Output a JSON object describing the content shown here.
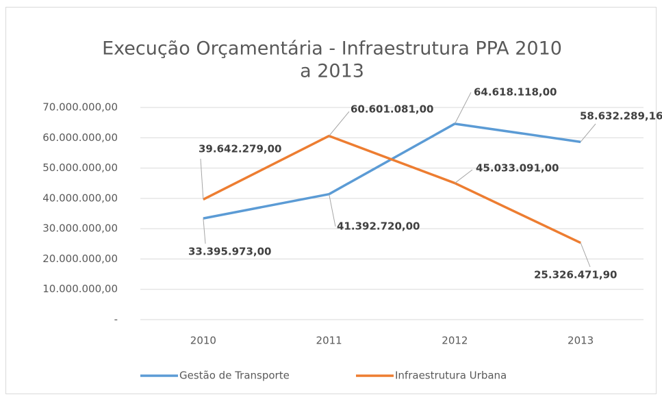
{
  "chart_data": {
    "type": "line",
    "title": [
      "Execução Orçamentária - Infraestrutura PPA 2010",
      "a 2013"
    ],
    "categories": [
      "2010",
      "2011",
      "2012",
      "2013"
    ],
    "series": [
      {
        "name": "Gestão de Transporte",
        "color": "#5b9bd5",
        "values": [
          33395973,
          41392720,
          64618118,
          58632289.16
        ],
        "value_labels": [
          "33.395.973,00",
          "41.392.720,00",
          "64.618.118,00",
          "58.632.289,16"
        ]
      },
      {
        "name": "Infraestrutura Urbana",
        "color": "#ed7d31",
        "values": [
          39642279,
          60601081,
          45033091,
          25326471.9
        ],
        "value_labels": [
          "39.642.279,00",
          "60.601.081,00",
          "45.033.091,00",
          "25.326.471,90"
        ]
      }
    ],
    "ylim": [
      0,
      70000000
    ],
    "yticks": [
      {
        "value": 0,
        "label": "-"
      },
      {
        "value": 10000000,
        "label": "10.000.000,00"
      },
      {
        "value": 20000000,
        "label": "20.000.000,00"
      },
      {
        "value": 30000000,
        "label": "30.000.000,00"
      },
      {
        "value": 40000000,
        "label": "40.000.000,00"
      },
      {
        "value": 50000000,
        "label": "50.000.000,00"
      },
      {
        "value": 60000000,
        "label": "60.000.000,00"
      },
      {
        "value": 70000000,
        "label": "70.000.000,00"
      }
    ],
    "grid": true,
    "legend": "bottom"
  }
}
